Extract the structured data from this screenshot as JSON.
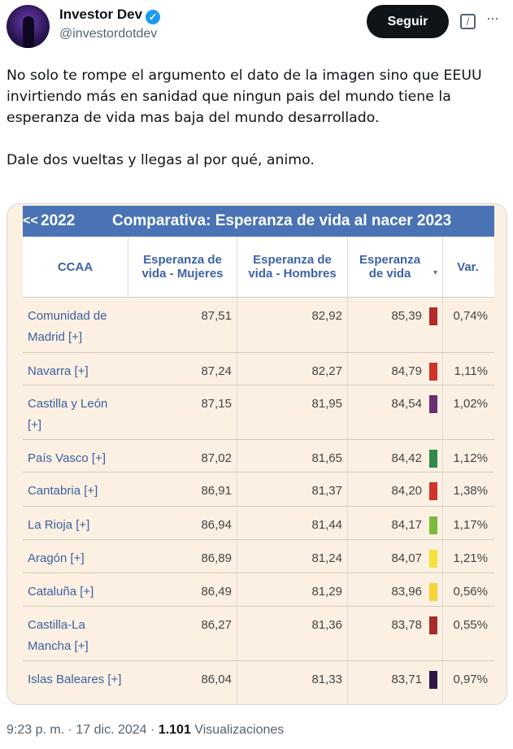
{
  "author": {
    "name": "Investor Dev",
    "handle": "@investordotdev",
    "verified": true
  },
  "actions": {
    "follow": "Seguir",
    "grok_icon": "grok-icon",
    "more_icon": "more-icon"
  },
  "tweet_text": "No solo te rompe el argumento el dato de la imagen sino que EEUU invirtiendo más en sanidad que ningun pais del mundo tiene la esperanza de vida mas baja del mundo desarrollado.\n\nDale dos vueltas y llegas al por qué, animo.",
  "table": {
    "prev": "<<",
    "year": "2022",
    "title": "Comparativa: Esperanza de vida al nacer 2023",
    "headers": [
      "CCAA",
      "Esperanza de vida - Mujeres",
      "Esperanza de vida - Hombres",
      "Esperanza de vida",
      "Var."
    ],
    "rows": [
      {
        "ccaa": "Comunidad de Madrid [+]",
        "mujeres": "87,51",
        "hombres": "82,92",
        "total": "85,39",
        "color": "#b22a2a",
        "var": "0,74%"
      },
      {
        "ccaa": "Navarra [+]",
        "mujeres": "87,24",
        "hombres": "82,27",
        "total": "84,79",
        "color": "#cf3326",
        "var": "1,11%"
      },
      {
        "ccaa": "Castilla y León [+]",
        "mujeres": "87,15",
        "hombres": "81,95",
        "total": "84,54",
        "color": "#6a2e72",
        "var": "1,02%"
      },
      {
        "ccaa": "País Vasco [+]",
        "mujeres": "87,02",
        "hombres": "81,65",
        "total": "84,42",
        "color": "#2f8a45",
        "var": "1,12%"
      },
      {
        "ccaa": "Cantabria [+]",
        "mujeres": "86,91",
        "hombres": "81,37",
        "total": "84,20",
        "color": "#d1322a",
        "var": "1,38%"
      },
      {
        "ccaa": "La Rioja [+]",
        "mujeres": "86,94",
        "hombres": "81,44",
        "total": "84,17",
        "color": "#7cba3c",
        "var": "1,17%"
      },
      {
        "ccaa": "Aragón [+]",
        "mujeres": "86,89",
        "hombres": "81,24",
        "total": "84,07",
        "color": "#f2e23a",
        "var": "1,21%"
      },
      {
        "ccaa": "Cataluña [+]",
        "mujeres": "86,49",
        "hombres": "81,29",
        "total": "83,96",
        "color": "#f3d534",
        "var": "0,56%"
      },
      {
        "ccaa": "Castilla-La Mancha [+]",
        "mujeres": "86,27",
        "hombres": "81,36",
        "total": "83,78",
        "color": "#a82a2a",
        "var": "0,55%"
      },
      {
        "ccaa": "Islas Baleares [+]",
        "mujeres": "86,04",
        "hombres": "81,33",
        "total": "83,71",
        "color": "#2e1648",
        "var": "0,97%"
      }
    ]
  },
  "footer": {
    "time": "9:23 p. m.",
    "date": "17 dic. 2024",
    "views": "1.101",
    "views_label": "Visualizaciones",
    "sep": "·"
  }
}
